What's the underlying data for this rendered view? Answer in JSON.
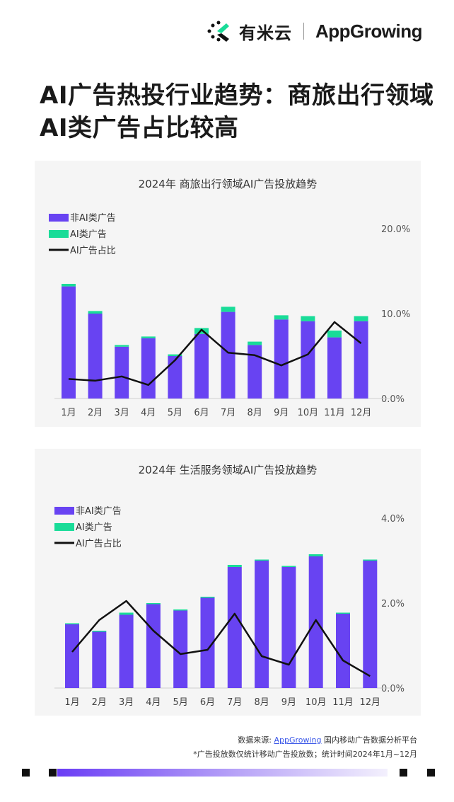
{
  "brand": {
    "cn": "有米云",
    "en": "AppGrowing"
  },
  "headline": "AI广告热投行业趋势：商旅出行领域AI类广告占比较高",
  "legend": {
    "nonai": "非AI类广告",
    "ai": "AI类广告",
    "ratio": "AI广告占比"
  },
  "colors": {
    "nonai": "#6843f2",
    "ai": "#19dc98",
    "ratio": "#111111"
  },
  "chart_data": [
    {
      "type": "bar",
      "title": "2024年  商旅出行领域AI广告投放趋势",
      "categories": [
        "1月",
        "2月",
        "3月",
        "4月",
        "5月",
        "6月",
        "7月",
        "8月",
        "9月",
        "10月",
        "11月",
        "12月"
      ],
      "series": [
        {
          "name": "非AI类广告",
          "values": [
            132,
            100,
            61,
            71,
            50,
            76,
            102,
            63,
            93,
            91,
            72,
            91
          ]
        },
        {
          "name": "AI类广告",
          "values": [
            3,
            3,
            2,
            2,
            2,
            7,
            6,
            4,
            5,
            6,
            8,
            6
          ]
        },
        {
          "name": "AI广告占比",
          "values": [
            2.3,
            2.1,
            2.6,
            1.6,
            4.5,
            8.1,
            5.4,
            5.1,
            3.9,
            5.2,
            9.0,
            6.5
          ]
        }
      ],
      "y2_ticks": [
        "20.0%",
        "10.0%",
        "0.0%"
      ],
      "y2lim": [
        0,
        20
      ],
      "bar_max": 200,
      "grid": false,
      "legend_position": "top-left"
    },
    {
      "type": "bar",
      "title": "2024年  生活服务领域AI广告投放趋势",
      "categories": [
        "1月",
        "2月",
        "3月",
        "4月",
        "5月",
        "6月",
        "7月",
        "8月",
        "9月",
        "10月",
        "11月",
        "12月"
      ],
      "series": [
        {
          "name": "非AI类广告",
          "values": [
            60,
            53,
            69,
            79,
            73,
            85,
            114,
            120,
            114,
            124,
            70,
            120
          ]
        },
        {
          "name": "AI类广告",
          "values": [
            1,
            1,
            2,
            1,
            1,
            1,
            2,
            1,
            1,
            2,
            1,
            1
          ]
        },
        {
          "name": "AI广告占比",
          "values": [
            0.85,
            1.6,
            2.05,
            1.35,
            0.8,
            0.9,
            1.75,
            0.75,
            0.55,
            1.6,
            0.65,
            0.28
          ]
        }
      ],
      "y2_ticks": [
        "4.0%",
        "2.0%",
        "0.0%"
      ],
      "y2lim": [
        0,
        4
      ],
      "bar_max": 160,
      "grid": false,
      "legend_position": "top-left"
    }
  ],
  "footer": {
    "source_prefix": "数据来源: ",
    "source_link": "AppGrowing",
    "source_suffix": " 国内移动广告数据分析平台",
    "note": "*广告投放数仅统计移动广告投放数；统计时间2024年1月~12月"
  }
}
